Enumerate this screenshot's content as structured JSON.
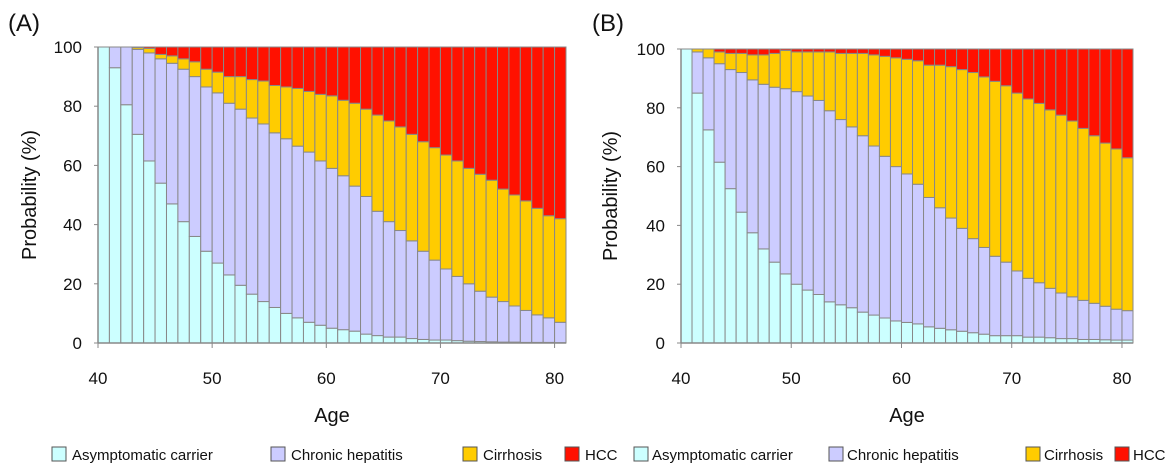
{
  "colors": {
    "asymptomatic": "#ccffff",
    "chronic": "#ccccff",
    "cirrhosis": "#ffcc00",
    "hcc": "#ff1100",
    "bar_border": "#888888",
    "axis": "#888888"
  },
  "chart_data": [
    {
      "type": "bar",
      "stacked": true,
      "panel_label": "(A)",
      "xlabel": "Age",
      "ylabel": "Probability (%)",
      "xlim": [
        40,
        81
      ],
      "ylim": [
        0,
        100
      ],
      "xticks": [
        40,
        50,
        60,
        70,
        80
      ],
      "yticks": [
        0,
        20,
        40,
        60,
        80,
        100
      ],
      "categories": [
        40,
        41,
        42,
        43,
        44,
        45,
        46,
        47,
        48,
        49,
        50,
        51,
        52,
        53,
        54,
        55,
        56,
        57,
        58,
        59,
        60,
        61,
        62,
        63,
        64,
        65,
        66,
        67,
        68,
        69,
        70,
        71,
        72,
        73,
        74,
        75,
        76,
        77,
        78,
        79,
        80
      ],
      "series": [
        {
          "name": "Asymptomatic carrier",
          "color_key": "asymptomatic",
          "values": [
            100,
            93,
            80.5,
            70.5,
            61.5,
            54,
            47,
            41,
            36,
            31,
            27,
            23,
            19.5,
            16.5,
            14,
            12,
            10,
            8.5,
            7,
            6,
            5,
            4.5,
            4,
            3,
            2.5,
            2,
            2,
            1.5,
            1.2,
            1,
            1,
            0.8,
            0.6,
            0.5,
            0.4,
            0.3,
            0.3,
            0.2,
            0.2,
            0.2,
            0.1
          ]
        },
        {
          "name": "Chronic hepatitis",
          "color_key": "chronic",
          "values": [
            0,
            7,
            19.5,
            28.7,
            36.5,
            42,
            47.5,
            51.5,
            54,
            55.5,
            57.5,
            58,
            59.5,
            59.5,
            60,
            59,
            59,
            58,
            57.5,
            55.5,
            54,
            52,
            49,
            46.5,
            42,
            39,
            36,
            33,
            29.8,
            27,
            24,
            21.7,
            19.4,
            17,
            15.1,
            13.7,
            12.2,
            10.8,
            9.3,
            8.3,
            6.9
          ]
        },
        {
          "name": "Cirrhosis",
          "color_key": "cirrhosis",
          "values": [
            0,
            0,
            0,
            0.6,
            1.5,
            1.5,
            2.5,
            3.5,
            5,
            6,
            7,
            9,
            11,
            13,
            14.5,
            16,
            17.5,
            19.5,
            20.5,
            22.5,
            24.5,
            25.5,
            28,
            29.5,
            32.5,
            34,
            35,
            36,
            37,
            38,
            38.5,
            39,
            39,
            39.5,
            39.5,
            38,
            37.5,
            37,
            36,
            34.5,
            35
          ]
        },
        {
          "name": "HCC",
          "color_key": "hcc",
          "values": [
            0,
            0,
            0,
            0.2,
            0.5,
            2.5,
            3,
            4,
            5,
            7.5,
            8.5,
            10,
            10,
            11,
            11.5,
            13,
            13.5,
            14,
            15,
            16,
            16.5,
            18,
            19,
            21,
            23,
            25,
            27,
            29.5,
            32,
            34,
            36.5,
            38.5,
            41,
            43,
            45,
            48,
            50,
            52,
            54.5,
            57,
            58
          ]
        }
      ]
    },
    {
      "type": "bar",
      "stacked": true,
      "panel_label": "(B)",
      "xlabel": "Age",
      "ylabel": "Probability (%)",
      "xlim": [
        40,
        81
      ],
      "ylim": [
        0,
        100
      ],
      "xticks": [
        40,
        50,
        60,
        70,
        80
      ],
      "yticks": [
        0,
        20,
        40,
        60,
        80,
        100
      ],
      "categories": [
        40,
        41,
        42,
        43,
        44,
        45,
        46,
        47,
        48,
        49,
        50,
        51,
        52,
        53,
        54,
        55,
        56,
        57,
        58,
        59,
        60,
        61,
        62,
        63,
        64,
        65,
        66,
        67,
        68,
        69,
        70,
        71,
        72,
        73,
        74,
        75,
        76,
        77,
        78,
        79,
        80
      ],
      "series": [
        {
          "name": "Asymptomatic carrier",
          "color_key": "asymptomatic",
          "values": [
            100,
            85,
            72.5,
            61.5,
            52.5,
            44.5,
            37.5,
            32,
            27.5,
            23.5,
            20,
            18,
            16.5,
            14,
            13,
            12,
            10.5,
            9.5,
            8.5,
            7.5,
            7,
            6.5,
            5.5,
            5,
            4.5,
            4,
            3.5,
            3,
            2.5,
            2.5,
            2.5,
            2,
            2,
            1.8,
            1.5,
            1.5,
            1.2,
            1.2,
            1.1,
            1,
            1
          ]
        },
        {
          "name": "Chronic hepatitis",
          "color_key": "chronic",
          "values": [
            0,
            14,
            24.5,
            33.5,
            40.5,
            47.5,
            52,
            56,
            59.5,
            63,
            65.5,
            66,
            66,
            65,
            63,
            61.5,
            60,
            57.5,
            55,
            52.5,
            50.5,
            47.5,
            44,
            41,
            38,
            35,
            32,
            29.5,
            27,
            25,
            22,
            20,
            18.5,
            16.8,
            15.5,
            14.2,
            13.3,
            12.3,
            11.4,
            10.5,
            10
          ]
        },
        {
          "name": "Cirrhosis",
          "color_key": "cirrhosis",
          "values": [
            0,
            1,
            3,
            4,
            5.5,
            6.5,
            8.5,
            10,
            11.5,
            13,
            13.5,
            15,
            16.5,
            20,
            22.5,
            25,
            28,
            31,
            34,
            37,
            39,
            42,
            45,
            48.5,
            51.5,
            54,
            56.5,
            58,
            59.5,
            60,
            60.5,
            61,
            61,
            60.7,
            60.5,
            59.8,
            58.5,
            57,
            55.5,
            54.5,
            52
          ]
        },
        {
          "name": "HCC",
          "color_key": "hcc",
          "values": [
            0,
            0,
            0,
            1,
            1.5,
            1.5,
            2,
            2,
            1.5,
            0.5,
            1,
            1,
            1,
            1,
            1.5,
            1.5,
            1.5,
            2,
            2.5,
            3,
            3.5,
            4,
            5.5,
            5.5,
            6,
            7,
            8,
            9.5,
            11,
            12.5,
            15,
            17,
            18.5,
            20.7,
            22.5,
            24.5,
            27,
            29.5,
            32,
            34,
            37
          ]
        }
      ]
    }
  ],
  "legends": [
    {
      "items": [
        {
          "label": "Asymptomatic carrier",
          "color_key": "asymptomatic"
        },
        {
          "label": "Chronic hepatitis",
          "color_key": "chronic"
        },
        {
          "label": "Cirrhosis",
          "color_key": "cirrhosis"
        },
        {
          "label": "HCC",
          "color_key": "hcc"
        }
      ]
    },
    {
      "items": [
        {
          "label": "Asymptomatic carrier",
          "color_key": "asymptomatic"
        },
        {
          "label": "Chronic hepatitis",
          "color_key": "chronic"
        },
        {
          "label": "Cirrhosis",
          "color_key": "cirrhosis"
        },
        {
          "label": "HCC",
          "color_key": "hcc"
        }
      ]
    }
  ]
}
